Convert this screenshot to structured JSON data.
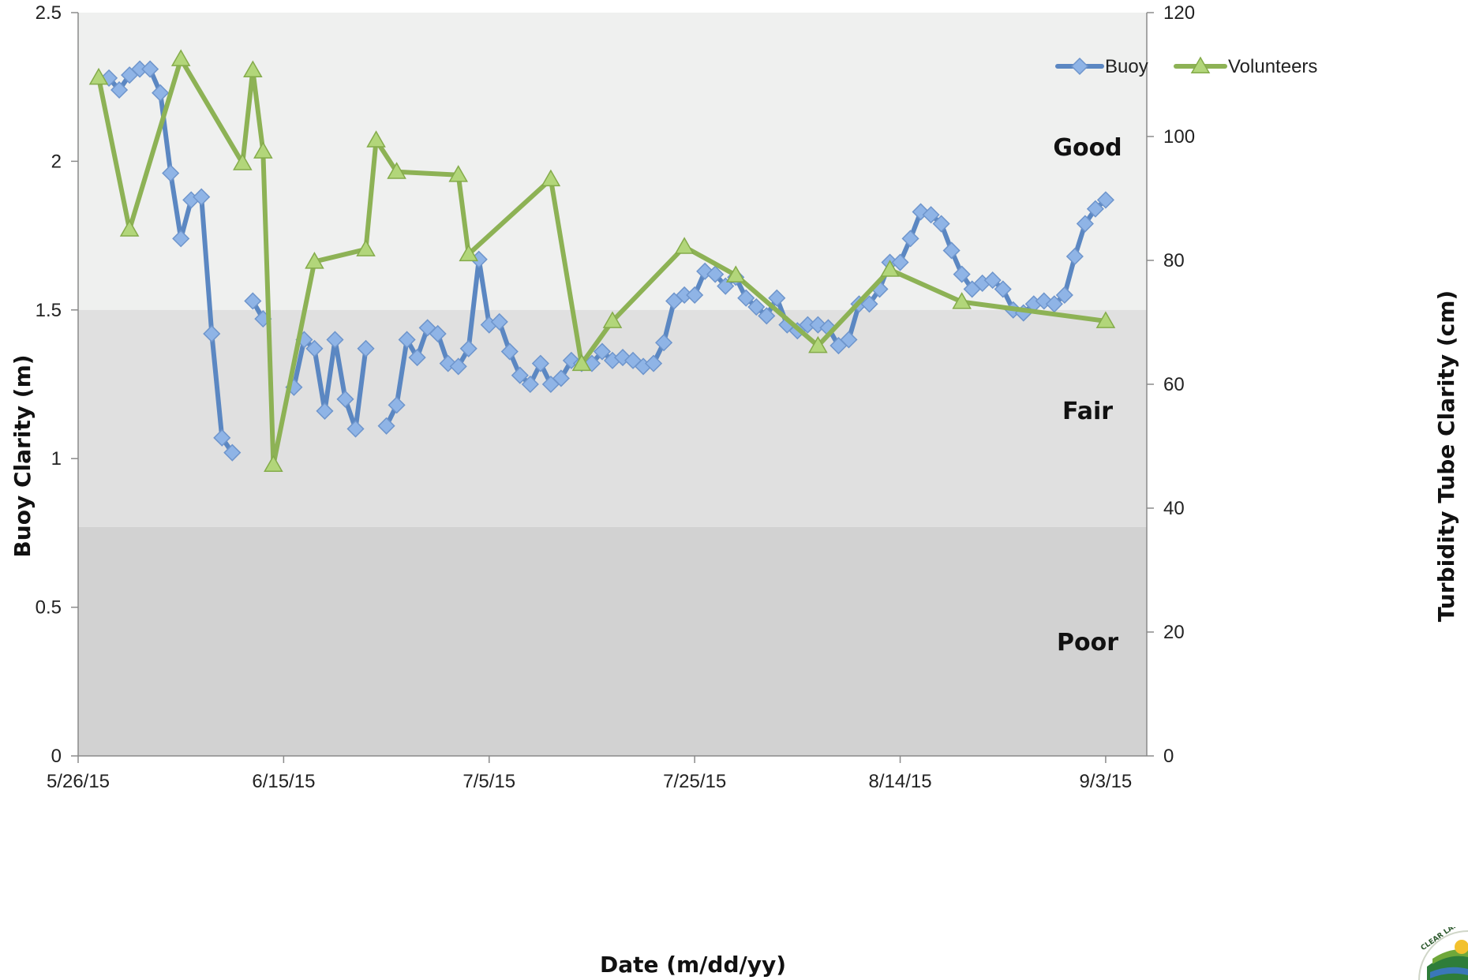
{
  "chart_data": {
    "type": "line",
    "xlabel": "Date (m/dd/yy)",
    "ylabel": "Buoy Clarity (m)",
    "y2label": "Turbidity Tube Clarity (cm)",
    "x_ticks": [
      "5/26/15",
      "6/15/15",
      "7/5/15",
      "7/25/15",
      "8/14/15",
      "9/3/15"
    ],
    "xlim": [
      "2015-05-26",
      "2015-09-07"
    ],
    "ylim": [
      0,
      2.5
    ],
    "y_ticks": [
      "0",
      "0.5",
      "1",
      "1.5",
      "2",
      "2.5"
    ],
    "y2lim": [
      0,
      120
    ],
    "y2_ticks": [
      "0",
      "20",
      "40",
      "60",
      "80",
      "100",
      "120"
    ],
    "bands": [
      {
        "label": "Good",
        "from": 1.5,
        "to": 2.5,
        "color": "#eff0ef"
      },
      {
        "label": "Fair",
        "from": 0.77,
        "to": 1.5,
        "color": "#e0e0e0"
      },
      {
        "label": "Poor",
        "from": 0,
        "to": 0.77,
        "color": "#d2d2d2"
      }
    ],
    "legend_position": "top-right",
    "series": [
      {
        "name": "Buoy",
        "axis": "left",
        "color": "#5b87c2",
        "marker": "diamond",
        "segments": [
          [
            [
              "2015-05-29",
              2.28
            ],
            [
              "2015-05-30",
              2.24
            ],
            [
              "2015-05-31",
              2.29
            ],
            [
              "2015-06-01",
              2.31
            ],
            [
              "2015-06-02",
              2.31
            ],
            [
              "2015-06-03",
              2.23
            ],
            [
              "2015-06-04",
              1.96
            ],
            [
              "2015-06-05",
              1.74
            ],
            [
              "2015-06-06",
              1.87
            ],
            [
              "2015-06-07",
              1.88
            ],
            [
              "2015-06-08",
              1.42
            ],
            [
              "2015-06-09",
              1.07
            ],
            [
              "2015-06-10",
              1.02
            ]
          ],
          [
            [
              "2015-06-12",
              1.53
            ],
            [
              "2015-06-13",
              1.47
            ]
          ],
          [
            [
              "2015-06-16",
              1.24
            ],
            [
              "2015-06-17",
              1.4
            ],
            [
              "2015-06-18",
              1.37
            ],
            [
              "2015-06-19",
              1.16
            ],
            [
              "2015-06-20",
              1.4
            ],
            [
              "2015-06-21",
              1.2
            ],
            [
              "2015-06-22",
              1.1
            ],
            [
              "2015-06-23",
              1.37
            ]
          ],
          [
            [
              "2015-06-25",
              1.11
            ],
            [
              "2015-06-26",
              1.18
            ],
            [
              "2015-06-27",
              1.4
            ],
            [
              "2015-06-28",
              1.34
            ],
            [
              "2015-06-29",
              1.44
            ],
            [
              "2015-06-30",
              1.42
            ],
            [
              "2015-07-01",
              1.32
            ],
            [
              "2015-07-02",
              1.31
            ],
            [
              "2015-07-03",
              1.37
            ],
            [
              "2015-07-04",
              1.67
            ],
            [
              "2015-07-05",
              1.45
            ],
            [
              "2015-07-06",
              1.46
            ],
            [
              "2015-07-07",
              1.36
            ],
            [
              "2015-07-08",
              1.28
            ],
            [
              "2015-07-09",
              1.25
            ],
            [
              "2015-07-10",
              1.32
            ],
            [
              "2015-07-11",
              1.25
            ],
            [
              "2015-07-12",
              1.27
            ],
            [
              "2015-07-13",
              1.33
            ],
            [
              "2015-07-14",
              1.32
            ],
            [
              "2015-07-15",
              1.32
            ],
            [
              "2015-07-16",
              1.36
            ],
            [
              "2015-07-17",
              1.33
            ],
            [
              "2015-07-18",
              1.34
            ],
            [
              "2015-07-19",
              1.33
            ],
            [
              "2015-07-20",
              1.31
            ],
            [
              "2015-07-21",
              1.32
            ],
            [
              "2015-07-22",
              1.39
            ],
            [
              "2015-07-23",
              1.53
            ],
            [
              "2015-07-24",
              1.55
            ],
            [
              "2015-07-25",
              1.55
            ],
            [
              "2015-07-26",
              1.63
            ],
            [
              "2015-07-27",
              1.62
            ],
            [
              "2015-07-28",
              1.58
            ],
            [
              "2015-07-29",
              1.61
            ],
            [
              "2015-07-30",
              1.54
            ],
            [
              "2015-07-31",
              1.51
            ],
            [
              "2015-08-01",
              1.48
            ],
            [
              "2015-08-02",
              1.54
            ],
            [
              "2015-08-03",
              1.45
            ],
            [
              "2015-08-04",
              1.43
            ],
            [
              "2015-08-05",
              1.45
            ],
            [
              "2015-08-06",
              1.45
            ],
            [
              "2015-08-07",
              1.44
            ],
            [
              "2015-08-08",
              1.38
            ],
            [
              "2015-08-09",
              1.4
            ],
            [
              "2015-08-10",
              1.52
            ],
            [
              "2015-08-11",
              1.52
            ],
            [
              "2015-08-12",
              1.57
            ],
            [
              "2015-08-13",
              1.66
            ],
            [
              "2015-08-14",
              1.66
            ],
            [
              "2015-08-15",
              1.74
            ],
            [
              "2015-08-16",
              1.83
            ],
            [
              "2015-08-17",
              1.82
            ],
            [
              "2015-08-18",
              1.79
            ],
            [
              "2015-08-19",
              1.7
            ],
            [
              "2015-08-20",
              1.62
            ],
            [
              "2015-08-21",
              1.57
            ],
            [
              "2015-08-22",
              1.59
            ],
            [
              "2015-08-23",
              1.6
            ],
            [
              "2015-08-24",
              1.57
            ],
            [
              "2015-08-25",
              1.5
            ],
            [
              "2015-08-26",
              1.49
            ],
            [
              "2015-08-27",
              1.52
            ],
            [
              "2015-08-28",
              1.53
            ],
            [
              "2015-08-29",
              1.52
            ],
            [
              "2015-08-30",
              1.55
            ],
            [
              "2015-08-31",
              1.68
            ],
            [
              "2015-09-01",
              1.79
            ],
            [
              "2015-09-02",
              1.84
            ],
            [
              "2015-09-03",
              1.87
            ]
          ]
        ]
      },
      {
        "name": "Volunteers",
        "axis": "right",
        "color": "#8db255",
        "marker": "triangle",
        "segments": [
          [
            [
              "2015-05-28",
              109.5
            ],
            [
              "2015-05-31",
              85.0
            ],
            [
              "2015-06-05",
              112.5
            ],
            [
              "2015-06-11",
              95.7
            ],
            [
              "2015-06-12",
              110.7
            ],
            [
              "2015-06-13",
              97.6
            ],
            [
              "2015-06-14",
              47.0
            ],
            [
              "2015-06-18",
              79.8
            ],
            [
              "2015-06-23",
              81.8
            ],
            [
              "2015-06-24",
              99.4
            ],
            [
              "2015-06-26",
              94.3
            ],
            [
              "2015-07-02",
              93.8
            ],
            [
              "2015-07-03",
              81.0
            ],
            [
              "2015-07-11",
              93.1
            ],
            [
              "2015-07-14",
              63.3
            ],
            [
              "2015-07-17",
              70.2
            ],
            [
              "2015-07-24",
              82.2
            ],
            [
              "2015-07-29",
              77.6
            ],
            [
              "2015-08-06",
              66.2
            ],
            [
              "2015-08-13",
              78.5
            ],
            [
              "2015-08-20",
              73.3
            ],
            [
              "2015-09-03",
              70.2
            ]
          ]
        ]
      }
    ]
  }
}
